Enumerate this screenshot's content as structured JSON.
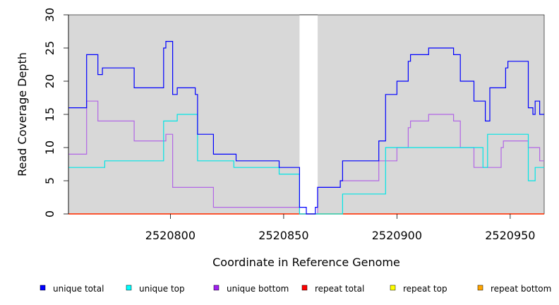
{
  "chart_data": {
    "type": "line",
    "title": "",
    "xlabel": "Coordinate in Reference Genome",
    "ylabel": "Read Coverage Depth",
    "xlim": [
      2520755,
      2520965
    ],
    "ylim": [
      0,
      30
    ],
    "x_ticks": [
      2520800,
      2520850,
      2520900,
      2520950
    ],
    "y_ticks": [
      0,
      5,
      10,
      15,
      20,
      25,
      30
    ],
    "background_color": "#d8d8d8",
    "gap_regions": [
      [
        2520857,
        2520865
      ]
    ],
    "step": true,
    "series": [
      {
        "name": "unique total",
        "color": "#0000ff",
        "points": [
          [
            2520755,
            16
          ],
          [
            2520763,
            24
          ],
          [
            2520768,
            21
          ],
          [
            2520770,
            22
          ],
          [
            2520784,
            19
          ],
          [
            2520797,
            25
          ],
          [
            2520798,
            26
          ],
          [
            2520801,
            18
          ],
          [
            2520803,
            19
          ],
          [
            2520811,
            18
          ],
          [
            2520812,
            12
          ],
          [
            2520819,
            9
          ],
          [
            2520829,
            8
          ],
          [
            2520848,
            7
          ],
          [
            2520857,
            1
          ],
          [
            2520860,
            0
          ],
          [
            2520864,
            1
          ],
          [
            2520865,
            4
          ],
          [
            2520875,
            5
          ],
          [
            2520876,
            8
          ],
          [
            2520892,
            11
          ],
          [
            2520895,
            18
          ],
          [
            2520900,
            20
          ],
          [
            2520905,
            23
          ],
          [
            2520906,
            24
          ],
          [
            2520914,
            25
          ],
          [
            2520925,
            24
          ],
          [
            2520928,
            20
          ],
          [
            2520934,
            17
          ],
          [
            2520939,
            14
          ],
          [
            2520941,
            19
          ],
          [
            2520948,
            22
          ],
          [
            2520949,
            23
          ],
          [
            2520958,
            16
          ],
          [
            2520960,
            15
          ],
          [
            2520961,
            17
          ],
          [
            2520963,
            15
          ],
          [
            2520965,
            15
          ]
        ]
      },
      {
        "name": "unique top",
        "color": "#00e5e5",
        "points": [
          [
            2520755,
            7
          ],
          [
            2520771,
            8
          ],
          [
            2520797,
            14
          ],
          [
            2520803,
            15
          ],
          [
            2520812,
            8
          ],
          [
            2520828,
            7
          ],
          [
            2520848,
            6
          ],
          [
            2520857,
            0
          ],
          [
            2520876,
            3
          ],
          [
            2520895,
            10
          ],
          [
            2520938,
            7
          ],
          [
            2520940,
            12
          ],
          [
            2520958,
            5
          ],
          [
            2520961,
            7
          ],
          [
            2520965,
            7
          ]
        ]
      },
      {
        "name": "unique bottom",
        "color": "#b266e5",
        "points": [
          [
            2520755,
            9
          ],
          [
            2520763,
            17
          ],
          [
            2520768,
            14
          ],
          [
            2520784,
            11
          ],
          [
            2520798,
            12
          ],
          [
            2520801,
            4
          ],
          [
            2520819,
            1
          ],
          [
            2520857,
            0
          ],
          [
            2520865,
            4
          ],
          [
            2520875,
            5
          ],
          [
            2520892,
            8
          ],
          [
            2520900,
            10
          ],
          [
            2520905,
            13
          ],
          [
            2520906,
            14
          ],
          [
            2520914,
            15
          ],
          [
            2520925,
            14
          ],
          [
            2520928,
            10
          ],
          [
            2520934,
            7
          ],
          [
            2520946,
            10
          ],
          [
            2520947,
            11
          ],
          [
            2520958,
            10
          ],
          [
            2520963,
            8
          ],
          [
            2520965,
            8
          ]
        ]
      },
      {
        "name": "repeat total",
        "color": "#ff0000",
        "points": [
          [
            2520755,
            0
          ],
          [
            2520965,
            0
          ]
        ]
      },
      {
        "name": "repeat top",
        "color": "#ffff00",
        "points": [
          [
            2520755,
            0
          ],
          [
            2520965,
            0
          ]
        ]
      },
      {
        "name": "repeat bottom",
        "color": "#ffa500",
        "points": [
          [
            2520755,
            0
          ],
          [
            2520965,
            0
          ]
        ]
      }
    ],
    "legend": {
      "position": "bottom",
      "items": [
        {
          "label": "unique total",
          "color": "#0000ff"
        },
        {
          "label": "unique top",
          "color": "#00ffff"
        },
        {
          "label": "unique bottom",
          "color": "#a020f0"
        },
        {
          "label": "repeat total",
          "color": "#ff0000"
        },
        {
          "label": "repeat top",
          "color": "#ffff00"
        },
        {
          "label": "repeat bottom",
          "color": "#ffa500"
        }
      ]
    }
  }
}
